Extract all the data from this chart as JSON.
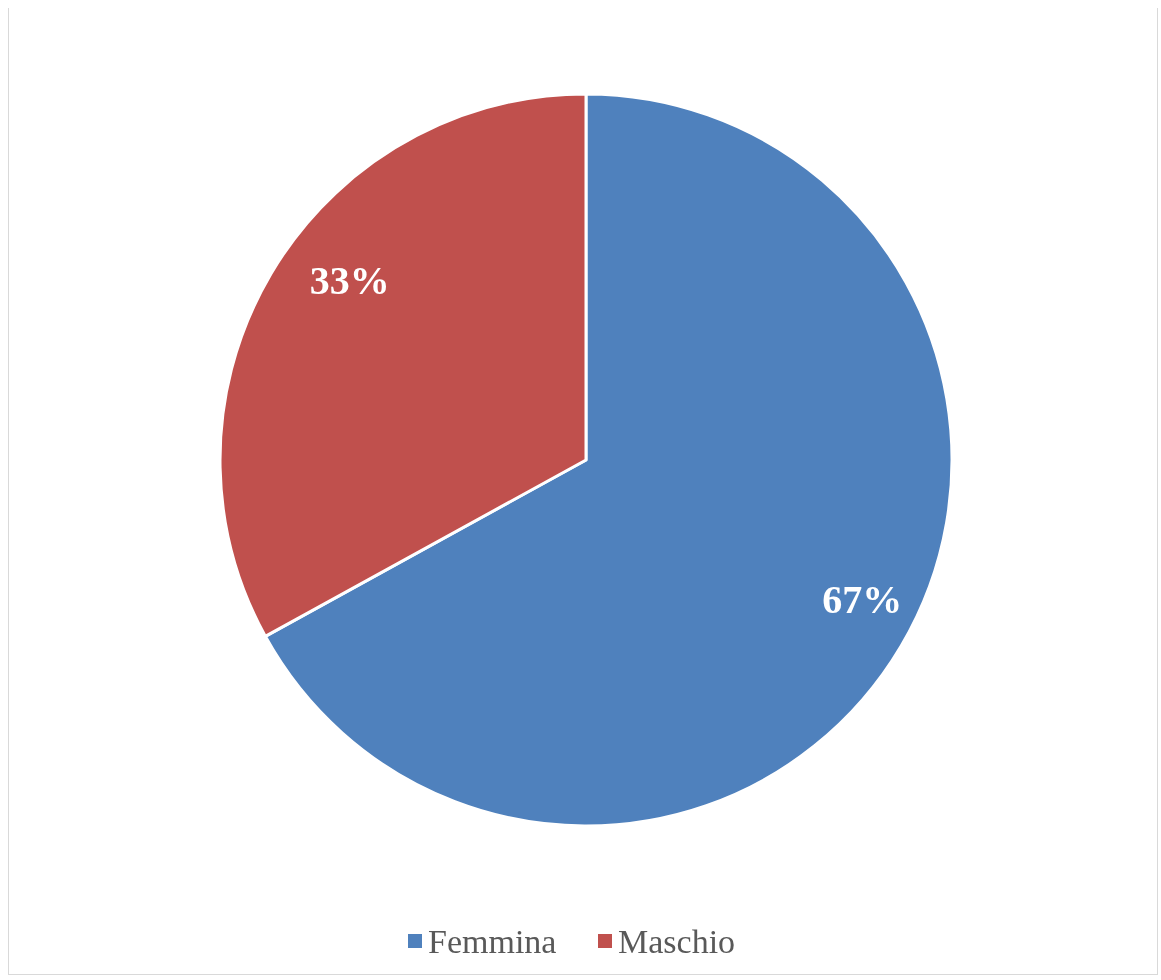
{
  "chart_data": {
    "type": "pie",
    "categories": [
      "Femmina",
      "Maschio"
    ],
    "values": [
      67,
      33
    ],
    "colors": [
      "#4f81bd",
      "#c0504d"
    ],
    "value_labels": [
      "67%",
      "33%"
    ],
    "legend": "bottom"
  }
}
